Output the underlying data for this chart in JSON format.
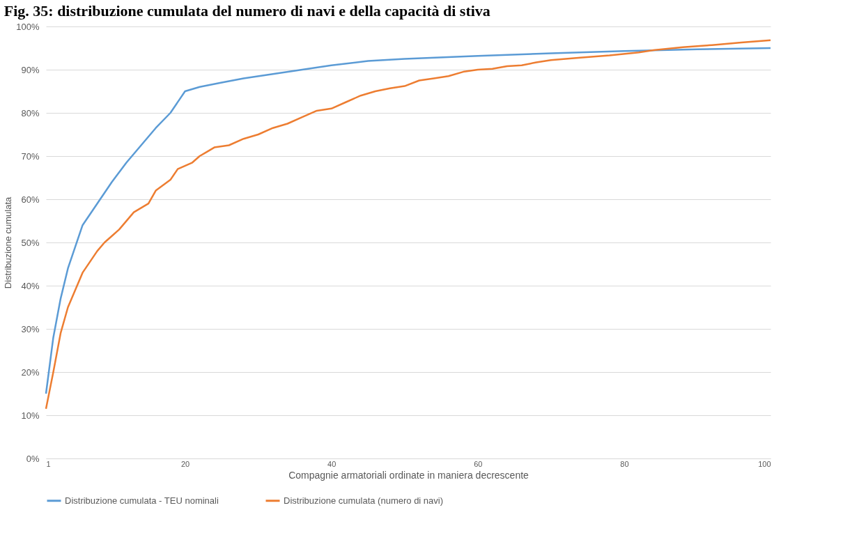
{
  "chart_data": {
    "type": "line",
    "title": "Fig. 35: distribuzione cumulata del numero di navi e della capacità di stiva",
    "xlabel": "Compagnie armatoriali ordinate in maniera decrescente",
    "ylabel": "Distribuzione cumulata",
    "xlim": [
      1,
      100
    ],
    "xticks": [
      1,
      20,
      40,
      60,
      80,
      100
    ],
    "ylim": [
      0,
      100
    ],
    "yticks": [
      {
        "value": 0,
        "label": "0%"
      },
      {
        "value": 10,
        "label": "10%"
      },
      {
        "value": 20,
        "label": "20%"
      },
      {
        "value": 30,
        "label": "30%"
      },
      {
        "value": 40,
        "label": "40%"
      },
      {
        "value": 50,
        "label": "50%"
      },
      {
        "value": 60,
        "label": "60%"
      },
      {
        "value": 70,
        "label": "70%"
      },
      {
        "value": 80,
        "label": "80%"
      },
      {
        "value": 90,
        "label": "90%"
      },
      {
        "value": 100,
        "label": "100%"
      }
    ],
    "grid": "y",
    "legend": "bottom",
    "marker": "none",
    "line_style": "solid",
    "series": [
      {
        "name": "Distribuzione cumulata - TEU nominali",
        "color": "#5b9bd5",
        "x": [
          1,
          2,
          3,
          4,
          5,
          6,
          8,
          10,
          12,
          14,
          16,
          18,
          20,
          22,
          25,
          28,
          32,
          36,
          40,
          45,
          50,
          60,
          70,
          80,
          90,
          100
        ],
        "values": [
          15,
          28,
          37,
          44,
          49,
          54,
          59,
          64,
          68.5,
          72.5,
          76.5,
          80,
          85,
          86,
          87,
          88,
          89,
          90,
          91,
          92,
          92.5,
          93.2,
          93.8,
          94.3,
          94.7,
          95
        ]
      },
      {
        "name": "Distribuzione cumulata (numero di navi)",
        "color": "#ed7d31",
        "x": [
          1,
          2,
          3,
          4,
          5,
          6,
          7,
          8,
          9,
          10,
          11,
          13,
          15,
          16,
          18,
          19,
          21,
          22,
          23,
          24,
          26,
          28,
          30,
          32,
          34,
          36,
          38,
          40,
          42,
          44,
          46,
          48,
          50,
          52,
          54,
          56,
          58,
          60,
          62,
          64,
          66,
          68,
          70,
          74,
          78,
          82,
          84,
          88,
          92,
          96,
          100
        ],
        "values": [
          11.5,
          20,
          29,
          35,
          39,
          43,
          45.5,
          48,
          50,
          51.5,
          53,
          57,
          59,
          62,
          64.5,
          67,
          68.5,
          70,
          71,
          72,
          72.5,
          74,
          75,
          76.5,
          77.5,
          79,
          80.5,
          81,
          82.5,
          84,
          85,
          85.7,
          86.2,
          87.5,
          88,
          88.5,
          89.5,
          90,
          90.2,
          90.8,
          91,
          91.7,
          92.2,
          92.8,
          93.3,
          94,
          94.5,
          95.2,
          95.7,
          96.3,
          96.8
        ]
      }
    ]
  }
}
